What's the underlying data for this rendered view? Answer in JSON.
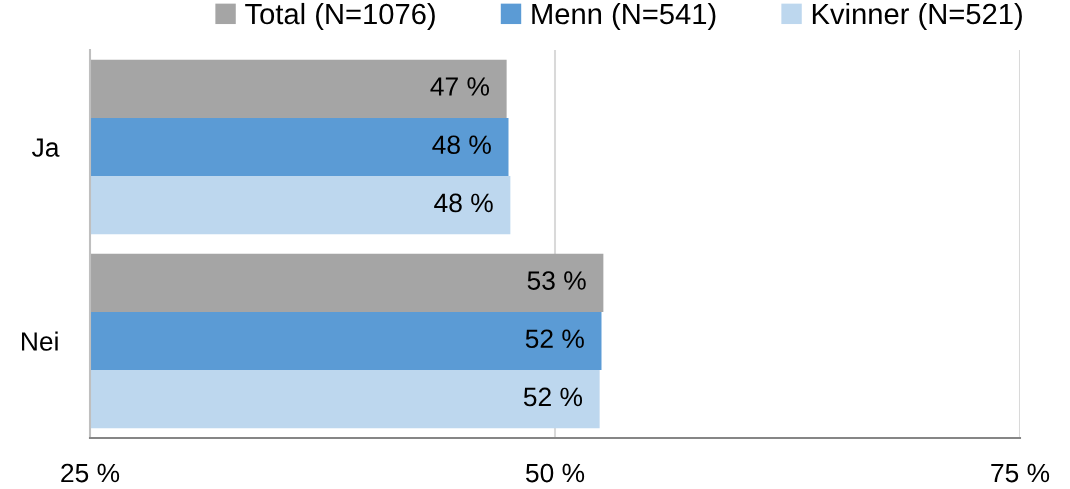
{
  "chart_data": {
    "type": "bar",
    "orientation": "horizontal",
    "categories": [
      "Ja",
      "Nei"
    ],
    "series": [
      {
        "name": "Total (N=1076)",
        "color": "#a5a5a5",
        "values": [
          47.4,
          52.6
        ],
        "value_labels": [
          "47 %",
          "53 %"
        ]
      },
      {
        "name": "Menn (N=541)",
        "color": "#5b9bd5",
        "values": [
          47.5,
          52.5
        ],
        "value_labels": [
          "48 %",
          "52 %"
        ]
      },
      {
        "name": "Kvinner (N=521)",
        "color": "#bdd7ee",
        "values": [
          47.6,
          52.4
        ],
        "value_labels": [
          "48 %",
          "52 %"
        ]
      }
    ],
    "xlim": [
      25,
      75
    ],
    "xticks": [
      {
        "value": 25,
        "label": "25 %"
      },
      {
        "value": 50,
        "label": "50 %"
      },
      {
        "value": 75,
        "label": "75 %"
      }
    ],
    "grid": "x",
    "legend": "top"
  }
}
